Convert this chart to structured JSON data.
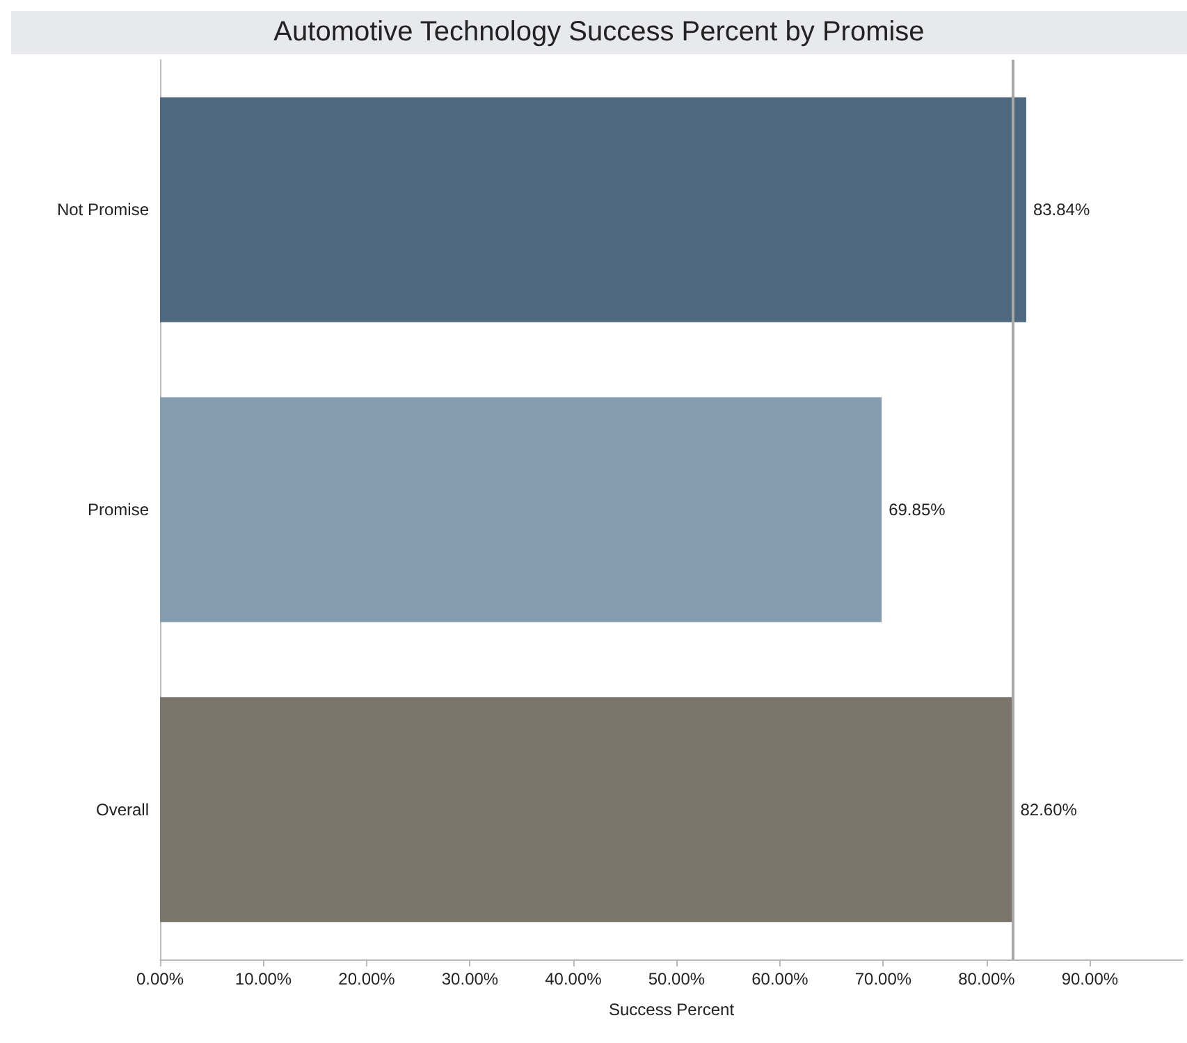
{
  "chart_data": {
    "type": "bar",
    "orientation": "horizontal",
    "title": "Automotive Technology Success Percent by Promise",
    "xlabel": "Success Percent",
    "categories": [
      "Not Promise",
      "Promise",
      "Overall"
    ],
    "values": [
      83.84,
      69.85,
      82.6
    ],
    "colors": [
      "#4e6880",
      "#859daf",
      "#7b746a"
    ],
    "value_labels": [
      "83.84%",
      "69.85%",
      "82.60%"
    ],
    "xlim": [
      0,
      99
    ],
    "xticks": [
      {
        "value": 0,
        "label": "0.00%"
      },
      {
        "value": 10,
        "label": "10.00%"
      },
      {
        "value": 20,
        "label": "20.00%"
      },
      {
        "value": 30,
        "label": "30.00%"
      },
      {
        "value": 40,
        "label": "40.00%"
      },
      {
        "value": 50,
        "label": "50.00%"
      },
      {
        "value": 60,
        "label": "60.00%"
      },
      {
        "value": 70,
        "label": "70.00%"
      },
      {
        "value": 80,
        "label": "80.00%"
      },
      {
        "value": 90,
        "label": "90.00%"
      }
    ],
    "ref_lines": [
      {
        "axis": "x",
        "value": 82.6,
        "label": null,
        "color": "#a8a8a8"
      }
    ]
  }
}
